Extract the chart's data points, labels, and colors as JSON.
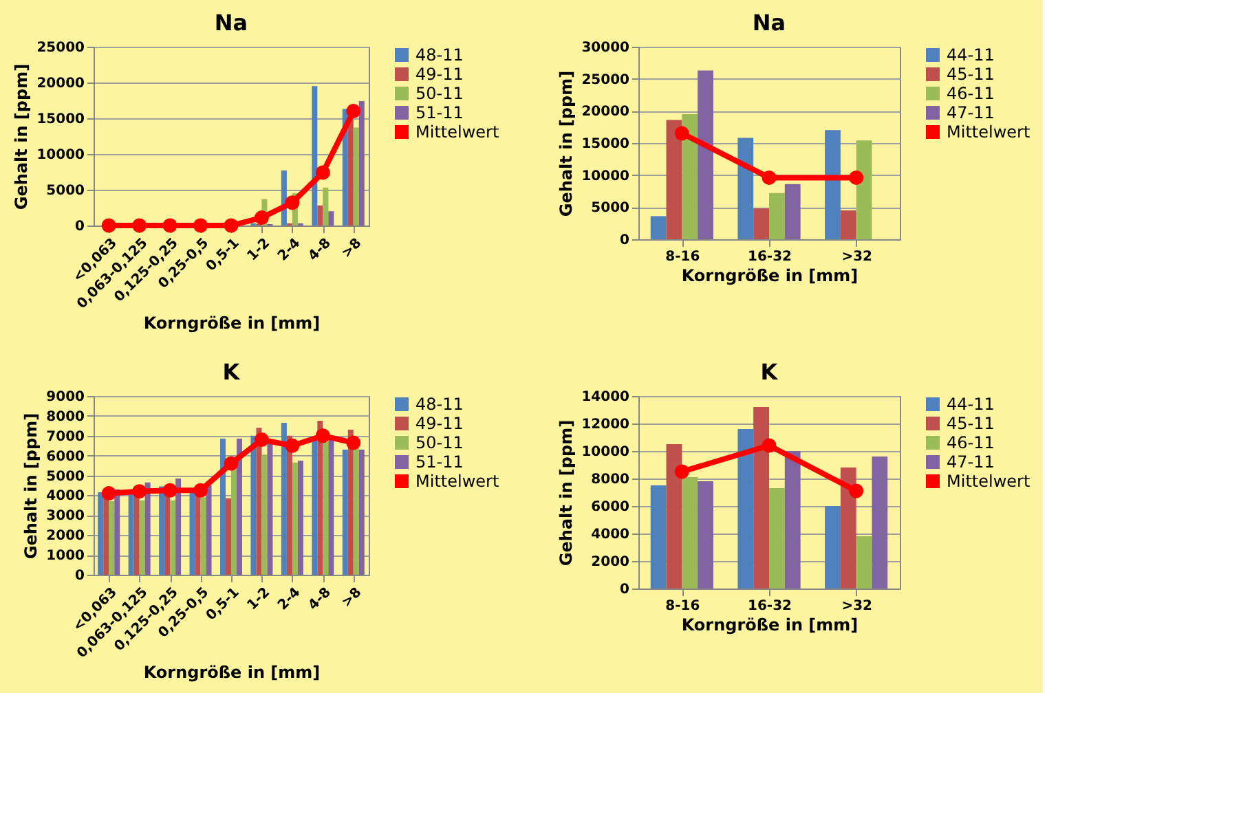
{
  "chart_data": [
    {
      "type": "bar",
      "title": "Na",
      "xlabel": "Korngröße in [mm]",
      "ylabel": "Gehalt in [ppm]",
      "categories": [
        "<0,063",
        "0,063-0,125",
        "0,125-0,25",
        "0,25-0,5",
        "0,5-1",
        "1-2",
        "2-4",
        "4-8",
        ">8"
      ],
      "ylim": [
        0,
        25000
      ],
      "yticks": [
        0,
        5000,
        10000,
        15000,
        20000,
        25000
      ],
      "grid": "y",
      "legend": "right",
      "marker": "circle",
      "series": [
        {
          "name": "48-11",
          "color": "#4f81bd",
          "values": [
            0,
            0,
            0,
            0,
            0,
            300,
            7700,
            19500,
            16300
          ]
        },
        {
          "name": "49-11",
          "color": "#c0504d",
          "values": [
            0,
            0,
            0,
            0,
            0,
            200,
            300,
            2800,
            15000
          ]
        },
        {
          "name": "50-11",
          "color": "#9bbb59",
          "values": [
            0,
            0,
            0,
            0,
            0,
            3700,
            4500,
            5300,
            13700
          ]
        },
        {
          "name": "51-11",
          "color": "#8064a2",
          "values": [
            0,
            0,
            0,
            0,
            0,
            200,
            300,
            2000,
            17400
          ]
        },
        {
          "name": "Mittelwert",
          "color": "#ff0000",
          "type": "line",
          "values": [
            0,
            0,
            0,
            0,
            0,
            1100,
            3200,
            7400,
            16000
          ]
        }
      ]
    },
    {
      "type": "bar",
      "title": "Na",
      "xlabel": "Korngröße in [mm]",
      "ylabel": "Gehalt in [ppm]",
      "categories": [
        "8-16",
        "16-32",
        ">32"
      ],
      "ylim": [
        0,
        30000
      ],
      "yticks": [
        0,
        5000,
        10000,
        15000,
        20000,
        25000,
        30000
      ],
      "grid": "y",
      "legend": "right",
      "marker": "circle",
      "series": [
        {
          "name": "44-11",
          "color": "#4f81bd",
          "values": [
            3600,
            15800,
            17000
          ]
        },
        {
          "name": "45-11",
          "color": "#c0504d",
          "values": [
            18600,
            4800,
            4500
          ]
        },
        {
          "name": "46-11",
          "color": "#9bbb59",
          "values": [
            19500,
            7200,
            15400
          ]
        },
        {
          "name": "47-11",
          "color": "#8064a2",
          "values": [
            26300,
            8600,
            null
          ]
        },
        {
          "name": "Mittelwert",
          "color": "#ff0000",
          "type": "line",
          "values": [
            16500,
            9600,
            9600
          ]
        }
      ]
    },
    {
      "type": "bar",
      "title": "K",
      "xlabel": "Korngröße in [mm]",
      "ylabel": "Gehalt in [ppm]",
      "categories": [
        "<0,063",
        "0,063-0,125",
        "0,125-0,25",
        "0,25-0,5",
        "0,5-1",
        "1-2",
        "2-4",
        "4-8",
        ">8"
      ],
      "ylim": [
        0,
        9000
      ],
      "yticks": [
        0,
        1000,
        2000,
        3000,
        4000,
        5000,
        6000,
        7000,
        8000,
        9000
      ],
      "grid": "y",
      "legend": "right",
      "marker": "circle",
      "series": [
        {
          "name": "48-11",
          "color": "#4f81bd",
          "values": [
            4150,
            4100,
            4450,
            4200,
            6850,
            7000,
            7650,
            6900,
            6300
          ]
        },
        {
          "name": "49-11",
          "color": "#c0504d",
          "values": [
            3900,
            4000,
            4100,
            4000,
            3850,
            7400,
            7000,
            7750,
            7300
          ]
        },
        {
          "name": "50-11",
          "color": "#9bbb59",
          "values": [
            3700,
            3750,
            3750,
            3900,
            5300,
            6050,
            5650,
            6700,
            6400
          ]
        },
        {
          "name": "51-11",
          "color": "#8064a2",
          "values": [
            4300,
            4650,
            4850,
            4500,
            6850,
            6700,
            5750,
            6900,
            6300
          ]
        },
        {
          "name": "Mittelwert",
          "color": "#ff0000",
          "type": "line",
          "values": [
            4100,
            4200,
            4250,
            4250,
            5600,
            6800,
            6500,
            7000,
            6650
          ]
        }
      ]
    },
    {
      "type": "bar",
      "title": "K",
      "xlabel": "Korngröße in [mm]",
      "ylabel": "Gehalt in [ppm]",
      "categories": [
        "8-16",
        "16-32",
        ">32"
      ],
      "ylim": [
        0,
        14000
      ],
      "yticks": [
        0,
        2000,
        4000,
        6000,
        8000,
        10000,
        12000,
        14000
      ],
      "grid": "y",
      "legend": "right",
      "marker": "circle",
      "series": [
        {
          "name": "44-11",
          "color": "#4f81bd",
          "values": [
            7500,
            11600,
            6000
          ]
        },
        {
          "name": "45-11",
          "color": "#c0504d",
          "values": [
            10500,
            13200,
            8800
          ]
        },
        {
          "name": "46-11",
          "color": "#9bbb59",
          "values": [
            8100,
            7300,
            3800
          ]
        },
        {
          "name": "47-11",
          "color": "#8064a2",
          "values": [
            7800,
            10000,
            9600
          ]
        },
        {
          "name": "Mittelwert",
          "color": "#ff0000",
          "type": "line",
          "values": [
            8500,
            10400,
            7100
          ]
        }
      ]
    }
  ]
}
